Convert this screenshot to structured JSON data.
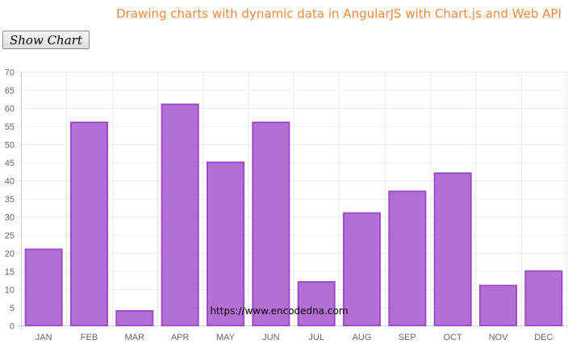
{
  "page": {
    "title": "Drawing charts with dynamic data in AngularJS with Chart.js and Web API",
    "button_label": "Show Chart",
    "watermark": "https://www.encodedna.com"
  },
  "chart_data": {
    "type": "bar",
    "categories": [
      "JAN",
      "FEB",
      "MAR",
      "APR",
      "MAY",
      "JUN",
      "JUL",
      "AUG",
      "SEP",
      "OCT",
      "NOV",
      "DEC"
    ],
    "values": [
      21,
      56,
      4,
      61,
      45,
      56,
      12,
      31,
      37,
      42,
      11,
      15
    ],
    "ylim": [
      0,
      70
    ],
    "y_ticks": [
      0,
      5,
      10,
      15,
      20,
      25,
      30,
      35,
      40,
      45,
      50,
      55,
      60,
      65,
      70
    ],
    "grid": true,
    "bar_fill": "#b36fd6",
    "bar_stroke": "#9b4fc6"
  }
}
